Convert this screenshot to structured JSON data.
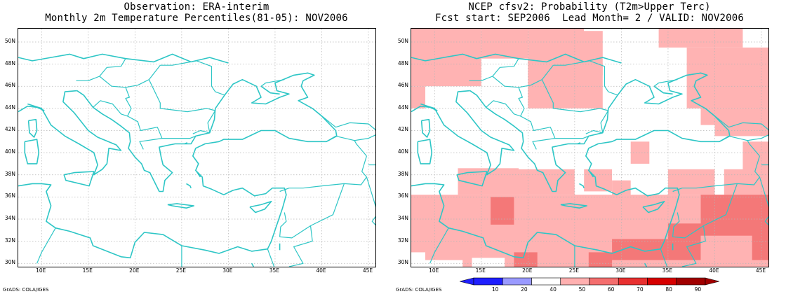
{
  "left_panel": {
    "title_line1": "Observation: ERA-interim",
    "title_line2": "Monthly 2m Temperature Percentiles(81-05): NOV2006",
    "credit": "GrADS: COLA/IGES"
  },
  "right_panel": {
    "title_line1": "NCEP cfsv2: Probability (T2m>Upper Terc)",
    "title_line2": "Fcst start: SEP2006  Lead Month= 2 / VALID: NOV2006",
    "credit": "GrADS: COLA/IGES"
  },
  "lat_labels": [
    "50N",
    "48N",
    "46N",
    "44N",
    "42N",
    "40N",
    "38N",
    "36N",
    "34N",
    "32N",
    "30N"
  ],
  "lon_labels": [
    "10E",
    "15E",
    "20E",
    "25E",
    "30E",
    "35E",
    "40E",
    "45E"
  ],
  "colorbar": {
    "labels": [
      "10",
      "20",
      "40",
      "50",
      "60",
      "70",
      "80",
      "90"
    ],
    "colors": [
      "#1f1fff",
      "#9a9aff",
      "#ffffff",
      "#ffb0b0",
      "#f46e6e",
      "#e83030",
      "#d60000",
      "#a00000"
    ]
  },
  "colors": {
    "coastline": "#2ec6c6",
    "grid": "#b5b5b5",
    "prob_light": "#ffb3b3",
    "prob_medium": "#f47878"
  }
}
